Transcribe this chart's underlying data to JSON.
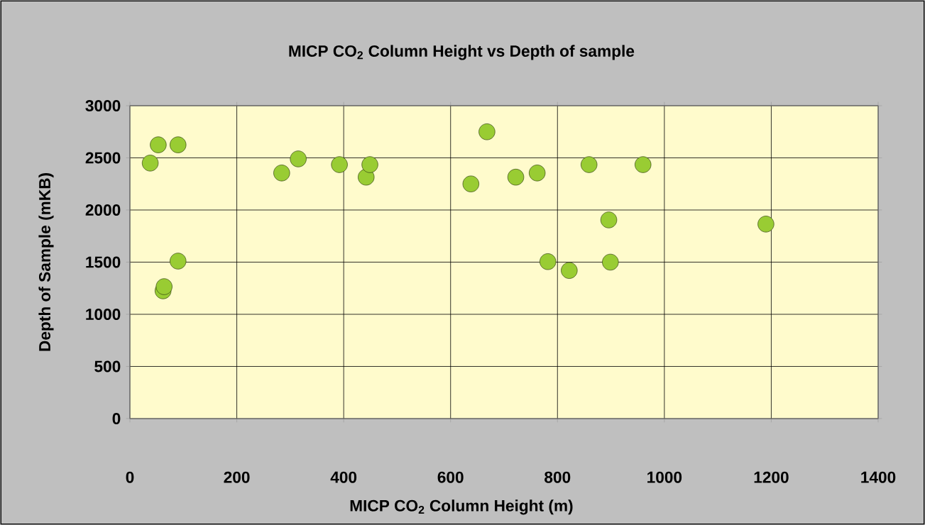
{
  "chart_data": {
    "type": "scatter",
    "title": "MICP CO$_{2}$ Column Height vs Depth of sample",
    "xlabel": "MICP CO$_{2}$ Column Height (m)",
    "ylabel": "Depth of Sample (mKB)",
    "x": [
      38,
      53,
      90,
      90,
      62,
      64,
      284,
      315,
      392,
      442,
      449,
      638,
      668,
      722,
      762,
      782,
      822,
      859,
      896,
      899,
      960,
      1190
    ],
    "values": [
      2450,
      2625,
      2625,
      1510,
      1225,
      1265,
      2355,
      2490,
      2435,
      2315,
      2435,
      2250,
      2750,
      2315,
      2355,
      1505,
      1420,
      2435,
      1905,
      1500,
      2435,
      1865
    ],
    "color": "#99cc33",
    "marker": "circle",
    "grid": true,
    "xlim": [
      0,
      1400
    ],
    "ylim": [
      0,
      3000
    ],
    "xticks": [
      0,
      200,
      400,
      600,
      800,
      1000,
      1200,
      1400
    ],
    "yticks": [
      0,
      500,
      1000,
      1500,
      2000,
      2500,
      3000
    ]
  }
}
